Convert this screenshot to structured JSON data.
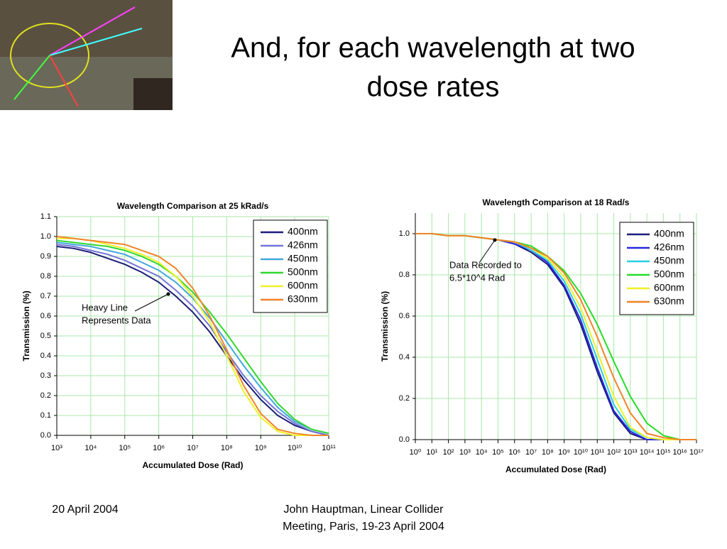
{
  "slide_title": [
    "And, for each wavelength at two",
    "dose rates"
  ],
  "footer": {
    "date": "20 April 2004",
    "author": [
      "John Hauptman, Linear Collider",
      "Meeting, Paris, 19-23 April 2004"
    ]
  },
  "chart_data": [
    {
      "type": "line",
      "title": "Wavelength Comparison at 25 kRad/s",
      "x_label": "Accumulated Dose (Rad)",
      "y_label": "Transmission (%)",
      "log_x": true,
      "grid": true,
      "legend": "upper right",
      "annotation": [
        "Heavy Line",
        "Represents Data"
      ],
      "x": [
        1000,
        3162,
        10000,
        31623,
        100000,
        316228,
        1000000,
        3162278,
        10000000,
        31622777,
        100000000,
        316227766,
        1000000000,
        3162277660,
        10000000000,
        31622776602,
        100000000000
      ],
      "xlim": [
        1000,
        100000000000
      ],
      "xticks": [
        {
          "value": 1000,
          "label": "10³"
        },
        {
          "value": 10000,
          "label": "10⁴"
        },
        {
          "value": 100000,
          "label": "10⁵"
        },
        {
          "value": 1000000,
          "label": "10⁶"
        },
        {
          "value": 10000000,
          "label": "10⁷"
        },
        {
          "value": 100000000,
          "label": "10⁸"
        },
        {
          "value": 1000000000,
          "label": "10⁹"
        },
        {
          "value": 10000000000,
          "label": "10¹⁰"
        },
        {
          "value": 100000000000,
          "label": "10¹¹"
        }
      ],
      "ylim": [
        0,
        1.1
      ],
      "yticks": [
        {
          "value": 0,
          "label": "0.0"
        },
        0.1,
        0.2,
        0.3,
        0.4,
        0.5,
        0.6,
        0.7,
        0.8,
        0.9,
        {
          "value": 1,
          "label": "1.0"
        },
        1.1
      ],
      "series": [
        {
          "name": "400nm",
          "color": "#1c1c78",
          "values": [
            0.95,
            0.94,
            0.92,
            0.89,
            0.86,
            0.82,
            0.77,
            0.7,
            0.62,
            0.52,
            0.4,
            0.28,
            0.18,
            0.1,
            0.05,
            0.02,
            0.0
          ]
        },
        {
          "name": "426nm",
          "color": "#7474d8",
          "values": [
            0.96,
            0.95,
            0.93,
            0.91,
            0.88,
            0.84,
            0.8,
            0.73,
            0.65,
            0.55,
            0.42,
            0.3,
            0.2,
            0.12,
            0.06,
            0.02,
            0.0
          ]
        },
        {
          "name": "450nm",
          "color": "#40a8dc",
          "values": [
            0.97,
            0.96,
            0.95,
            0.93,
            0.91,
            0.87,
            0.83,
            0.77,
            0.69,
            0.59,
            0.47,
            0.35,
            0.24,
            0.14,
            0.07,
            0.03,
            0.01
          ]
        },
        {
          "name": "500nm",
          "color": "#30d830",
          "values": [
            0.98,
            0.97,
            0.96,
            0.95,
            0.93,
            0.9,
            0.86,
            0.8,
            0.72,
            0.62,
            0.51,
            0.39,
            0.27,
            0.16,
            0.08,
            0.03,
            0.01
          ]
        },
        {
          "name": "600nm",
          "color": "#f0f028",
          "values": [
            0.99,
            0.99,
            0.98,
            0.96,
            0.94,
            0.91,
            0.87,
            0.8,
            0.7,
            0.57,
            0.4,
            0.22,
            0.09,
            0.02,
            0.0,
            0.0,
            0.0
          ]
        },
        {
          "name": "630nm",
          "color": "#f08428",
          "values": [
            1.0,
            0.99,
            0.98,
            0.97,
            0.96,
            0.93,
            0.9,
            0.84,
            0.74,
            0.6,
            0.43,
            0.25,
            0.11,
            0.03,
            0.01,
            0.0,
            0.0
          ]
        }
      ]
    },
    {
      "type": "line",
      "title": "Wavelength Comparison at 18 Rad/s",
      "x_label": "Accumulated Dose (Rad)",
      "y_label": "Transmission (%)",
      "log_x": true,
      "grid": true,
      "legend": "upper right",
      "annotation": [
        "Data Recorded to",
        "6.5*10^4 Rad"
      ],
      "x": [
        1,
        10,
        100,
        1000,
        10000,
        100000,
        1000000,
        10000000,
        100000000,
        1000000000,
        10000000000,
        100000000000,
        1000000000000,
        10000000000000,
        100000000000000,
        1000000000000000,
        10000000000000000,
        100000000000000000
      ],
      "xlim": [
        1,
        100000000000000000
      ],
      "xticks": [
        {
          "value": 1,
          "label": "10⁰"
        },
        {
          "value": 10,
          "label": "10¹"
        },
        {
          "value": 100,
          "label": "10²"
        },
        {
          "value": 1000,
          "label": "10³"
        },
        {
          "value": 10000,
          "label": "10⁴"
        },
        {
          "value": 100000,
          "label": "10⁵"
        },
        {
          "value": 1000000,
          "label": "10⁶"
        },
        {
          "value": 10000000,
          "label": "10⁷"
        },
        {
          "value": 100000000,
          "label": "10⁸"
        },
        {
          "value": 1000000000,
          "label": "10⁹"
        },
        {
          "value": 10000000000,
          "label": "10¹⁰"
        },
        {
          "value": 100000000000,
          "label": "10¹¹"
        },
        {
          "value": 1000000000000,
          "label": "10¹²"
        },
        {
          "value": 10000000000000,
          "label": "10¹³"
        },
        {
          "value": 100000000000000,
          "label": "10¹⁴"
        },
        {
          "value": 1000000000000000,
          "label": "10¹⁵"
        },
        {
          "value": 10000000000000000,
          "label": "10¹⁶"
        },
        {
          "value": 100000000000000000,
          "label": "10¹⁷"
        }
      ],
      "ylim": [
        0,
        1.1
      ],
      "yticks": [
        {
          "value": 0,
          "label": "0.0"
        },
        0.2,
        0.4,
        0.6,
        0.8,
        {
          "value": 1,
          "label": "1.0"
        }
      ],
      "series": [
        {
          "name": "400nm",
          "color": "#1c1c78",
          "values": [
            1.0,
            1.0,
            0.99,
            0.99,
            0.98,
            0.97,
            0.95,
            0.91,
            0.85,
            0.74,
            0.56,
            0.33,
            0.13,
            0.03,
            0.0,
            0,
            0,
            0
          ]
        },
        {
          "name": "426nm",
          "color": "#2828e0",
          "values": [
            1.0,
            1.0,
            0.99,
            0.99,
            0.98,
            0.97,
            0.95,
            0.92,
            0.86,
            0.75,
            0.58,
            0.35,
            0.14,
            0.04,
            0.0,
            0,
            0,
            0
          ]
        },
        {
          "name": "450nm",
          "color": "#28d0e0",
          "values": [
            1.0,
            1.0,
            0.99,
            0.99,
            0.98,
            0.97,
            0.96,
            0.92,
            0.87,
            0.77,
            0.61,
            0.39,
            0.17,
            0.05,
            0.01,
            0,
            0,
            0
          ]
        },
        {
          "name": "500nm",
          "color": "#28dc28",
          "values": [
            1.0,
            1.0,
            0.99,
            0.99,
            0.98,
            0.97,
            0.96,
            0.94,
            0.89,
            0.82,
            0.71,
            0.56,
            0.38,
            0.21,
            0.08,
            0.02,
            0.0,
            0
          ]
        },
        {
          "name": "600nm",
          "color": "#f0f028",
          "values": [
            1.0,
            1.0,
            0.99,
            0.99,
            0.98,
            0.97,
            0.96,
            0.93,
            0.88,
            0.79,
            0.64,
            0.43,
            0.21,
            0.06,
            0.01,
            0,
            0,
            0
          ]
        },
        {
          "name": "630nm",
          "color": "#f08428",
          "values": [
            1.0,
            1.0,
            0.99,
            0.99,
            0.98,
            0.97,
            0.96,
            0.93,
            0.89,
            0.81,
            0.68,
            0.5,
            0.3,
            0.13,
            0.03,
            0.01,
            0,
            0
          ]
        }
      ]
    }
  ]
}
